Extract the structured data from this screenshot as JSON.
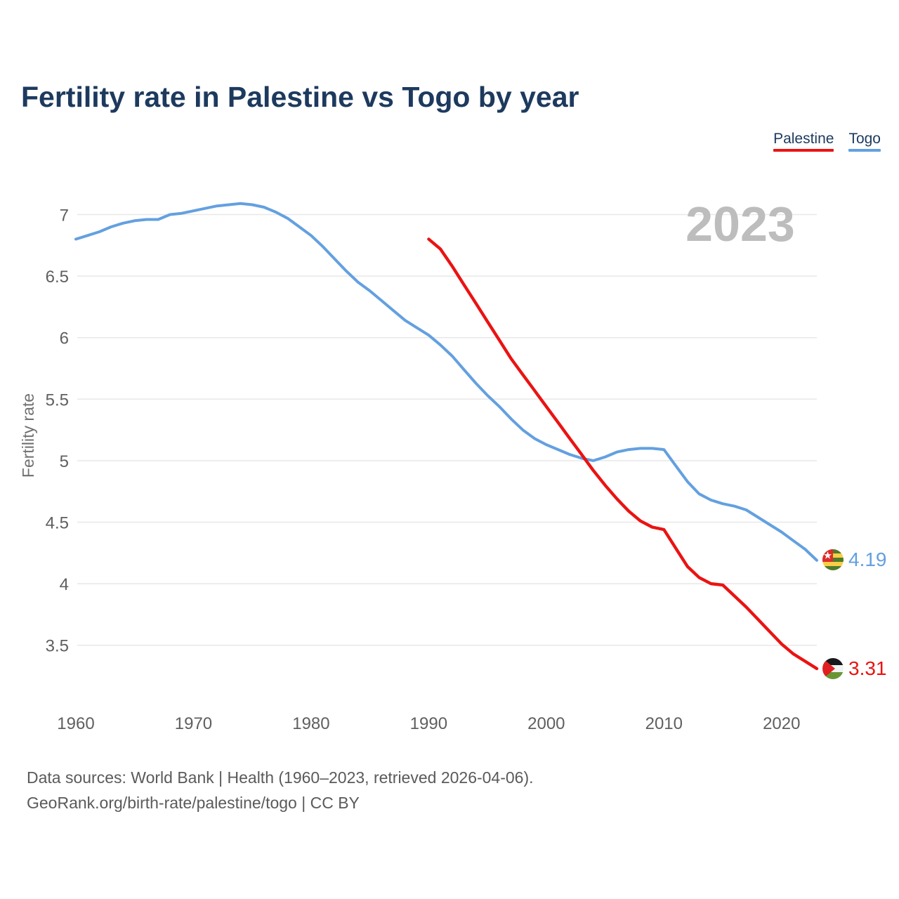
{
  "title": "Fertility rate in Palestine vs Togo by year",
  "legend": {
    "items": [
      {
        "label": "Palestine",
        "color": "#ea1313"
      },
      {
        "label": "Togo",
        "color": "#63a0e0"
      }
    ]
  },
  "watermark": "2023",
  "ylabel": "Fertility rate",
  "end_labels": [
    {
      "series": "Togo",
      "value": "4.19",
      "color": "#63a0e0",
      "flag": "togo-flag"
    },
    {
      "series": "Palestine",
      "value": "3.31",
      "color": "#ea1313",
      "flag": "palestine-flag"
    }
  ],
  "footer": {
    "line1": "Data sources: World Bank | Health (1960–2023, retrieved 2026-04-06).",
    "line2": "GeoRank.org/birth-rate/palestine/togo | CC BY"
  },
  "colors": {
    "title": "#1d3a5e",
    "grid": "#e8e8e8",
    "tick_text": "#5f5f5f",
    "watermark": "#bdbdbd",
    "palestine_red": "#ea1313",
    "togo_blue": "#63a0e0"
  },
  "chart_data": {
    "type": "line",
    "title": "Fertility rate in Palestine vs Togo by year",
    "xlabel": "",
    "ylabel": "Fertility rate",
    "x_ticks": [
      1960,
      1970,
      1980,
      1990,
      2000,
      2010,
      2020
    ],
    "y_ticks": [
      7,
      6.5,
      6,
      5.5,
      5,
      4.5,
      4,
      3.5
    ],
    "xlim": [
      1960,
      2023
    ],
    "ylim": [
      3.2,
      7.25
    ],
    "grid": true,
    "legend_position": "top-right",
    "series": [
      {
        "name": "Togo",
        "color": "#63a0e0",
        "x": [
          1960,
          1961,
          1962,
          1963,
          1964,
          1965,
          1966,
          1967,
          1968,
          1969,
          1970,
          1971,
          1972,
          1973,
          1974,
          1975,
          1976,
          1977,
          1978,
          1979,
          1980,
          1981,
          1982,
          1983,
          1984,
          1985,
          1986,
          1987,
          1988,
          1989,
          1990,
          1991,
          1992,
          1993,
          1994,
          1995,
          1996,
          1997,
          1998,
          1999,
          2000,
          2001,
          2002,
          2003,
          2004,
          2005,
          2006,
          2007,
          2008,
          2009,
          2010,
          2011,
          2012,
          2013,
          2014,
          2015,
          2016,
          2017,
          2018,
          2019,
          2020,
          2021,
          2022,
          2023
        ],
        "values": [
          6.8,
          6.83,
          6.86,
          6.9,
          6.93,
          6.95,
          6.96,
          6.96,
          7.0,
          7.01,
          7.03,
          7.05,
          7.07,
          7.08,
          7.09,
          7.08,
          7.06,
          7.02,
          6.97,
          6.9,
          6.83,
          6.74,
          6.64,
          6.54,
          6.45,
          6.38,
          6.3,
          6.22,
          6.14,
          6.08,
          6.02,
          5.94,
          5.85,
          5.74,
          5.63,
          5.53,
          5.44,
          5.34,
          5.25,
          5.18,
          5.13,
          5.09,
          5.05,
          5.02,
          5.0,
          5.03,
          5.07,
          5.09,
          5.1,
          5.1,
          5.09,
          4.96,
          4.83,
          4.73,
          4.68,
          4.65,
          4.63,
          4.6,
          4.54,
          4.48,
          4.42,
          4.35,
          4.28,
          4.19
        ]
      },
      {
        "name": "Palestine",
        "color": "#ea1313",
        "x": [
          1990,
          1991,
          1992,
          1993,
          1994,
          1995,
          1996,
          1997,
          1998,
          1999,
          2000,
          2001,
          2002,
          2003,
          2004,
          2005,
          2006,
          2007,
          2008,
          2009,
          2010,
          2011,
          2012,
          2013,
          2014,
          2015,
          2016,
          2017,
          2018,
          2019,
          2020,
          2021,
          2022,
          2023
        ],
        "values": [
          6.8,
          6.72,
          6.58,
          6.43,
          6.28,
          6.13,
          5.98,
          5.83,
          5.7,
          5.57,
          5.44,
          5.31,
          5.18,
          5.05,
          4.92,
          4.8,
          4.69,
          4.59,
          4.51,
          4.46,
          4.44,
          4.29,
          4.14,
          4.05,
          4.0,
          3.99,
          3.9,
          3.81,
          3.71,
          3.61,
          3.51,
          3.43,
          3.37,
          3.31
        ]
      }
    ]
  }
}
